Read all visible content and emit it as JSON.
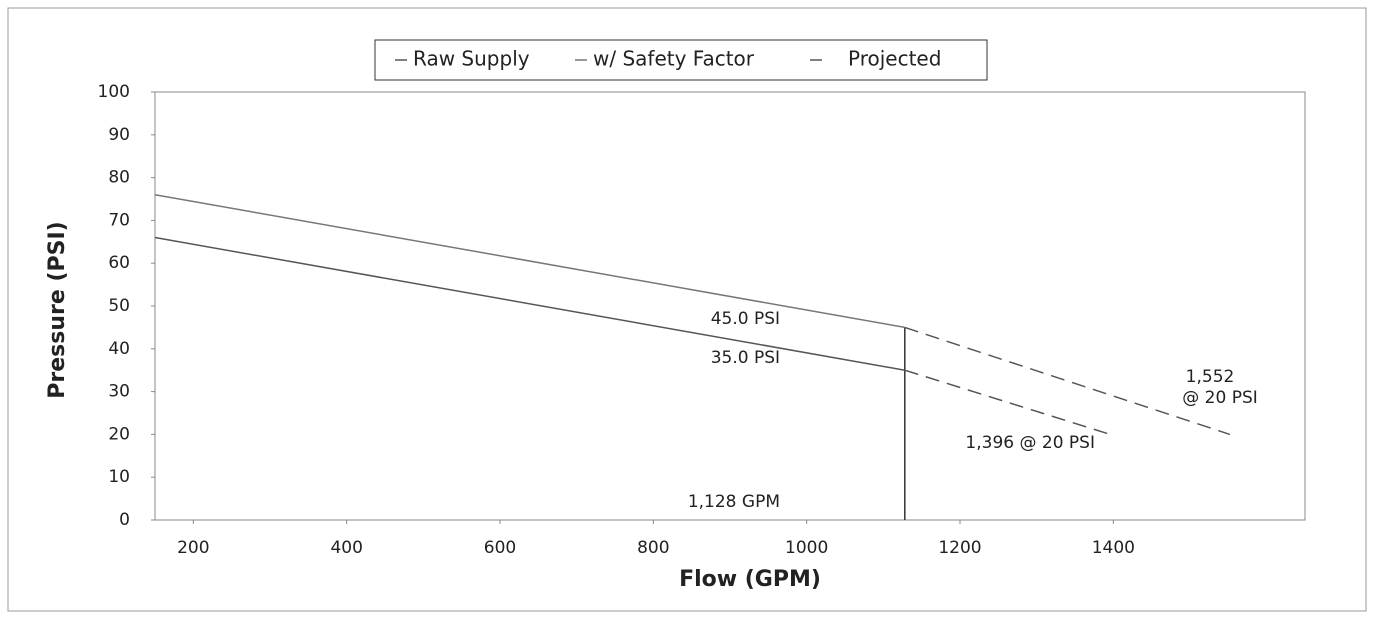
{
  "chart_data": {
    "type": "line",
    "xlabel": "Flow (GPM)",
    "ylabel": "Pressure (PSI)",
    "xlim": [
      150,
      1650
    ],
    "ylim": [
      0,
      100
    ],
    "xticks": [
      200,
      400,
      600,
      800,
      1000,
      1200,
      1400
    ],
    "yticks": [
      0,
      10,
      20,
      30,
      40,
      50,
      60,
      70,
      80,
      90,
      100
    ],
    "series": [
      {
        "name": "Raw Supply",
        "color": "#555555",
        "x": [
          150,
          1128
        ],
        "values": [
          66,
          35
        ]
      },
      {
        "name": "w/ Safety Factor",
        "color": "#777777",
        "x": [
          150,
          1128
        ],
        "values": [
          76,
          45
        ]
      },
      {
        "name": "Projected",
        "color": "#555555",
        "dashed": true,
        "x": [
          1128,
          1396,
          null,
          1128,
          1552
        ],
        "values": [
          35,
          20,
          null,
          45,
          20
        ]
      }
    ],
    "reference_x": 1128,
    "annotations": [
      "45.0 PSI",
      "35.0 PSI",
      "1,128 GPM",
      "1,396 @ 20 PSI",
      "1,552",
      "@ 20 PSI"
    ],
    "legend": "top"
  }
}
